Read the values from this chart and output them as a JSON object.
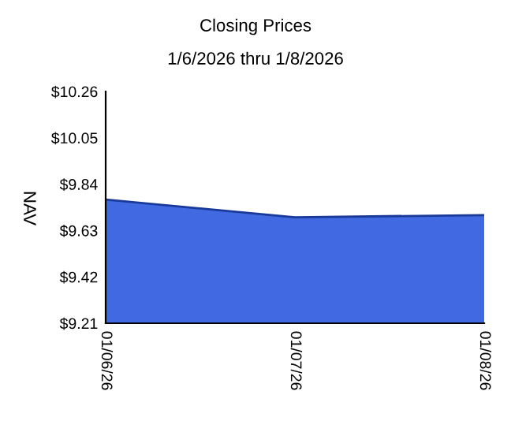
{
  "chart_data": {
    "type": "area",
    "title": "Closing Prices",
    "subtitle": "1/6/2026 thru 1/8/2026",
    "ylabel": "NAV",
    "categories": [
      "01/06/26",
      "01/07/26",
      "01/08/26"
    ],
    "series": [
      {
        "color": "#4169e1",
        "values": [
          9.77,
          9.69,
          9.7
        ]
      }
    ],
    "ylim": [
      9.21,
      10.26
    ],
    "yticks": [
      {
        "value": 9.21,
        "label": "$9.21"
      },
      {
        "value": 9.42,
        "label": "$9.42"
      },
      {
        "value": 9.63,
        "label": "$9.63"
      },
      {
        "value": 9.84,
        "label": "$9.84"
      },
      {
        "value": 10.05,
        "label": "$10.05"
      },
      {
        "value": 10.26,
        "label": "$10.26"
      }
    ],
    "grid": false,
    "legend": false
  }
}
